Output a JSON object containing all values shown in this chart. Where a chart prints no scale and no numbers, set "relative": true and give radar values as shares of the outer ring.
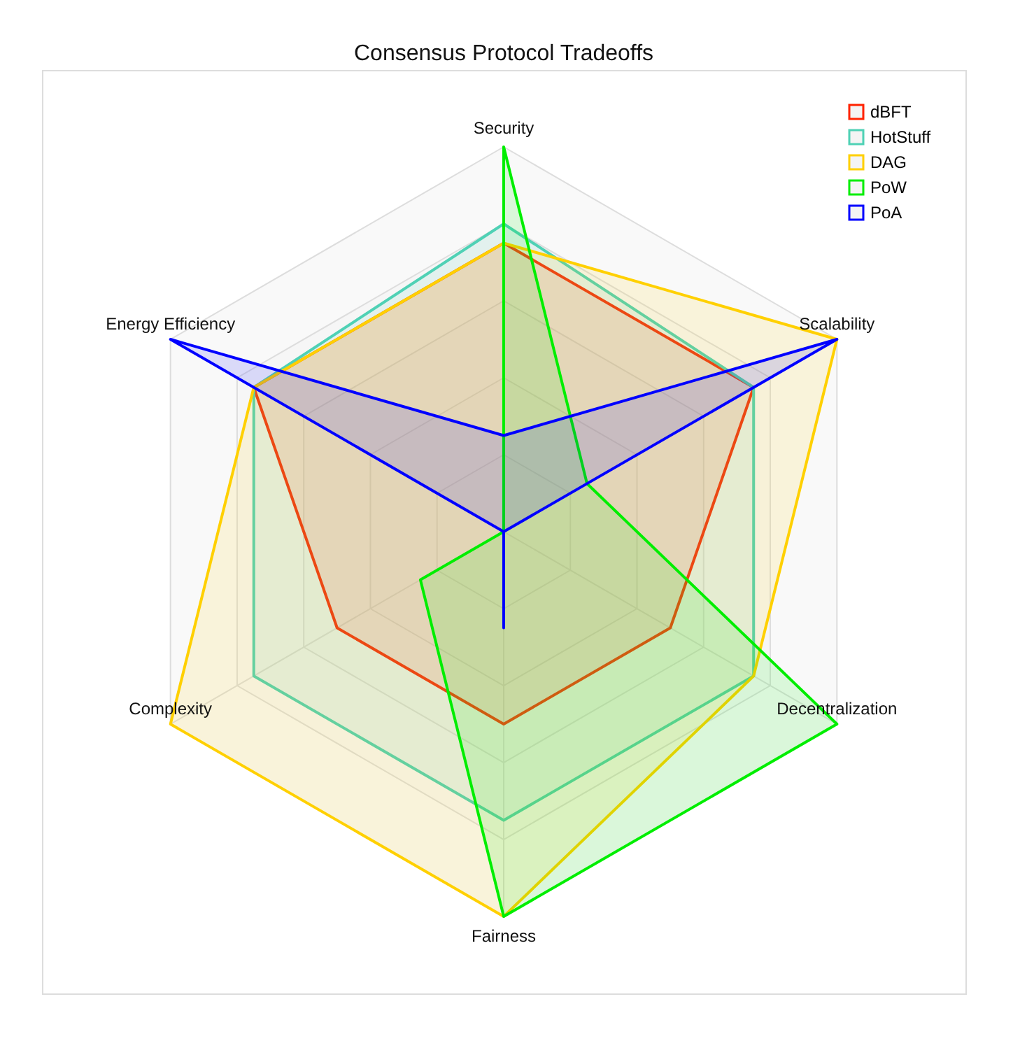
{
  "chart_data": {
    "type": "radar",
    "title": "Consensus Protocol Tradeoffs",
    "relative": true,
    "legend": "top right",
    "categories": [
      "Security",
      "Scalability",
      "Decentralization",
      "Fairness",
      "Complexity",
      "Energy Efficiency"
    ],
    "series": [
      {
        "name": "dBFT",
        "color": "#ff2200",
        "values": [
          0.75,
          0.75,
          0.5,
          0.5,
          0.5,
          0.75
        ]
      },
      {
        "name": "HotStuff",
        "color": "#4fd1b5",
        "values": [
          0.8,
          0.75,
          0.75,
          0.75,
          0.75,
          0.75
        ]
      },
      {
        "name": "DAG",
        "color": "#ffd000",
        "values": [
          0.75,
          1,
          0.75,
          1,
          1,
          0.75
        ]
      },
      {
        "name": "PoW",
        "color": "#00ee00",
        "values": [
          1,
          0.25,
          1,
          1,
          0.25,
          0
        ]
      },
      {
        "name": "PoA",
        "color": "#0000ff",
        "values": [
          0.25,
          1,
          0,
          0.25,
          0,
          1
        ]
      }
    ]
  }
}
